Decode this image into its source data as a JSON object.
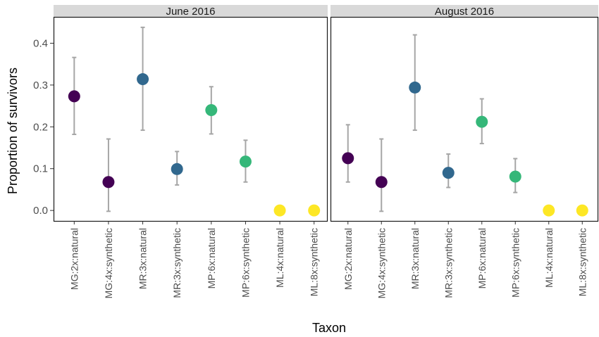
{
  "chart_data": {
    "type": "scatter",
    "xlabel": "Taxon",
    "ylabel": "Proportion of survivors",
    "ylim": [
      -0.025,
      0.463
    ],
    "yticks": [
      "0.0",
      "0.1",
      "0.2",
      "0.3",
      "0.4"
    ],
    "ytick_values": [
      0.0,
      0.1,
      0.2,
      0.3,
      0.4
    ],
    "categories": [
      "MG:2x:natural",
      "MG:4x:synthetic",
      "MR:3x:natural",
      "MR:3x:synthetic",
      "MP:6x:natural",
      "MP:6x:synthetic",
      "ML:4x:natural",
      "ML:8x:synthetic"
    ],
    "colors": [
      "#440154",
      "#440154",
      "#31688e",
      "#31688e",
      "#35b779",
      "#35b779",
      "#fde725",
      "#fde725"
    ],
    "error_bar_color": "#a6a6a6",
    "grid": false,
    "legend": "none",
    "facets": [
      {
        "label": "June 2016",
        "values": [
          0.273,
          0.068,
          0.314,
          0.099,
          0.24,
          0.117,
          0.0,
          0.0
        ],
        "lower": [
          0.182,
          -0.002,
          0.192,
          0.061,
          0.183,
          0.068,
          null,
          null
        ],
        "upper": [
          0.366,
          0.171,
          0.438,
          0.141,
          0.296,
          0.168,
          null,
          null
        ]
      },
      {
        "label": "August 2016",
        "values": [
          0.125,
          0.068,
          0.294,
          0.09,
          0.212,
          0.081,
          0.0,
          0.0
        ],
        "lower": [
          0.068,
          -0.002,
          0.192,
          0.055,
          0.16,
          0.043,
          null,
          null
        ],
        "upper": [
          0.205,
          0.171,
          0.42,
          0.135,
          0.267,
          0.124,
          null,
          null
        ]
      }
    ]
  }
}
